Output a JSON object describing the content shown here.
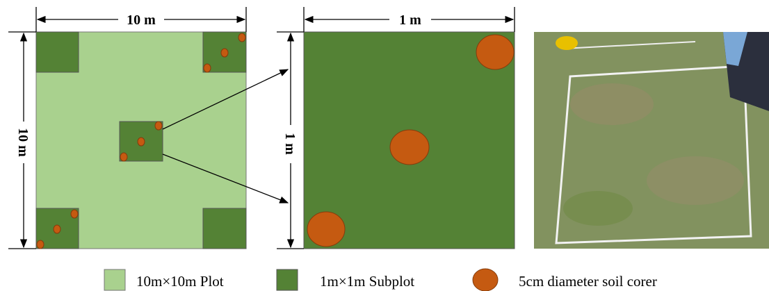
{
  "plot": {
    "width_label": "10 m",
    "height_label": "10 m"
  },
  "subplot": {
    "width_label": "1 m",
    "height_label": "1 m"
  },
  "legend": {
    "items": [
      {
        "label": "10m×10m Plot"
      },
      {
        "label": "1m×1m Subplot"
      },
      {
        "label": "5cm diameter soil corer"
      }
    ]
  }
}
